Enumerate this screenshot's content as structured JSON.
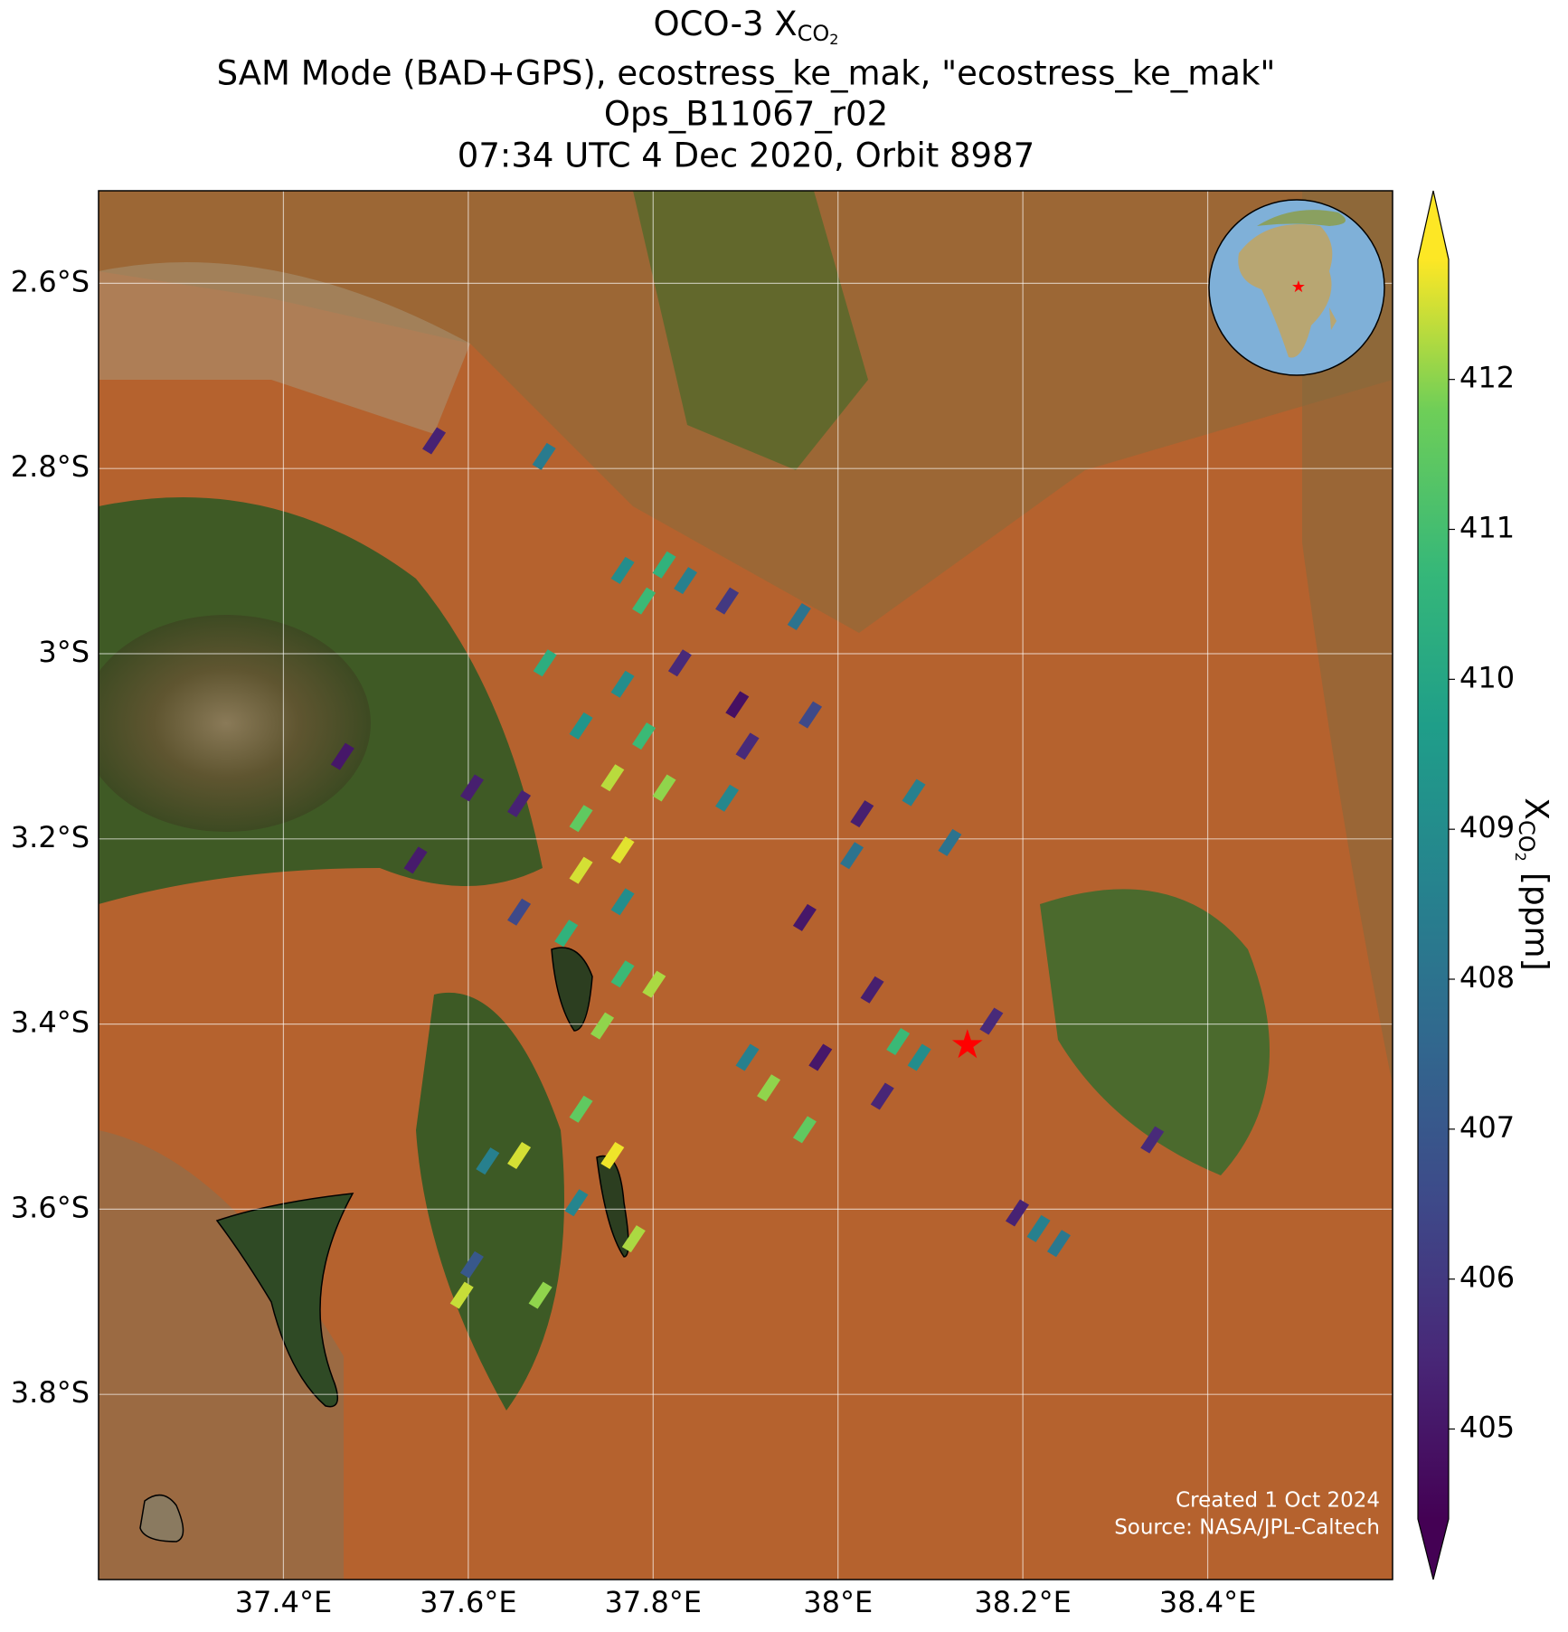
{
  "chart_data": {
    "type": "map",
    "title": {
      "text": "OCO-3 X",
      "sub": "CO",
      "subsub": "2"
    },
    "subtitles": [
      "SAM Mode (BAD+GPS), ecostress_ke_mak, \"ecostress_ke_mak\"",
      "Ops_B11067_r02",
      "07:34 UTC 4 Dec 2020, Orbit 8987"
    ],
    "xlim": [
      37.2,
      38.6
    ],
    "ylim": [
      -4.0,
      -2.5
    ],
    "xticks": [
      {
        "value": 37.4,
        "label": "37.4°E"
      },
      {
        "value": 37.6,
        "label": "37.6°E"
      },
      {
        "value": 37.8,
        "label": "37.8°E"
      },
      {
        "value": 38.0,
        "label": "38°E"
      },
      {
        "value": 38.2,
        "label": "38.2°E"
      },
      {
        "value": 38.4,
        "label": "38.4°E"
      }
    ],
    "yticks": [
      {
        "value": -2.6,
        "label": "2.6°S"
      },
      {
        "value": -2.8,
        "label": "2.8°S"
      },
      {
        "value": -3.0,
        "label": "3°S"
      },
      {
        "value": -3.2,
        "label": "3.2°S"
      },
      {
        "value": -3.4,
        "label": "3.4°S"
      },
      {
        "value": -3.6,
        "label": "3.6°S"
      },
      {
        "value": -3.8,
        "label": "3.8°S"
      }
    ],
    "grid": true,
    "colormap": "viridis",
    "colorbar_lim": [
      404.4,
      412.8
    ],
    "colorbar_ticks": [
      405,
      406,
      407,
      408,
      409,
      410,
      411,
      412
    ],
    "colorbar_label": {
      "text": "X",
      "sub": "CO",
      "subsub": "2",
      "unit": "[ppm]"
    },
    "soundings": {
      "lon": [
        37.563,
        37.682,
        37.767,
        37.812,
        37.835,
        37.79,
        37.88,
        37.958,
        37.683,
        37.767,
        37.829,
        37.891,
        37.97,
        37.464,
        37.722,
        37.79,
        37.756,
        37.812,
        37.722,
        37.767,
        37.722,
        37.88,
        37.902,
        37.655,
        37.604,
        37.543,
        37.655,
        37.706,
        37.767,
        37.767,
        37.801,
        37.745,
        37.902,
        37.925,
        37.981,
        37.964,
        38.026,
        38.082,
        38.015,
        37.964,
        38.037,
        38.065,
        38.088,
        38.048,
        38.166,
        38.121,
        37.655,
        37.621,
        37.722,
        37.717,
        37.756,
        37.593,
        37.604,
        37.678,
        37.779,
        38.194,
        38.217,
        38.239,
        38.34
      ],
      "lat": [
        -2.77,
        -2.787,
        -2.91,
        -2.904,
        -2.921,
        -2.943,
        -2.943,
        -2.96,
        -3.01,
        -3.033,
        -3.01,
        -3.055,
        -3.066,
        -3.111,
        -3.078,
        -3.089,
        -3.134,
        -3.145,
        -3.178,
        -3.212,
        -3.234,
        -3.156,
        -3.1,
        -3.162,
        -3.145,
        -3.223,
        -3.279,
        -3.302,
        -3.268,
        -3.346,
        -3.357,
        -3.402,
        -3.436,
        -3.469,
        -3.436,
        -3.514,
        -3.173,
        -3.15,
        -3.218,
        -3.285,
        -3.363,
        -3.419,
        -3.436,
        -3.478,
        -3.397,
        -3.204,
        -3.542,
        -3.548,
        -3.492,
        -3.593,
        -3.542,
        -3.693,
        -3.66,
        -3.693,
        -3.632,
        -3.604,
        -3.621,
        -3.637,
        -3.525
      ],
      "xco2": [
        405.3,
        408.3,
        409.0,
        410.5,
        408.5,
        410.8,
        406.0,
        408.0,
        410.3,
        409.0,
        405.5,
        404.8,
        406.5,
        405.0,
        409.3,
        410.8,
        412.3,
        412.0,
        411.5,
        412.6,
        412.5,
        408.8,
        405.5,
        405.3,
        405.2,
        405.1,
        406.5,
        410.5,
        409.0,
        410.8,
        412.2,
        412.0,
        408.5,
        412.0,
        405.0,
        411.5,
        405.2,
        408.5,
        408.0,
        405.0,
        405.2,
        410.8,
        409.0,
        405.4,
        405.5,
        408.0,
        412.5,
        408.5,
        411.5,
        408.7,
        412.7,
        412.4,
        407.0,
        412.0,
        412.2,
        405.3,
        408.5,
        408.2,
        405.5
      ]
    },
    "target": {
      "lon": 38.14,
      "lat": -3.425,
      "color": "#ff0000"
    },
    "credits": [
      "Created 1 Oct 2024",
      "Source: NASA/JPL-Caltech"
    ]
  }
}
